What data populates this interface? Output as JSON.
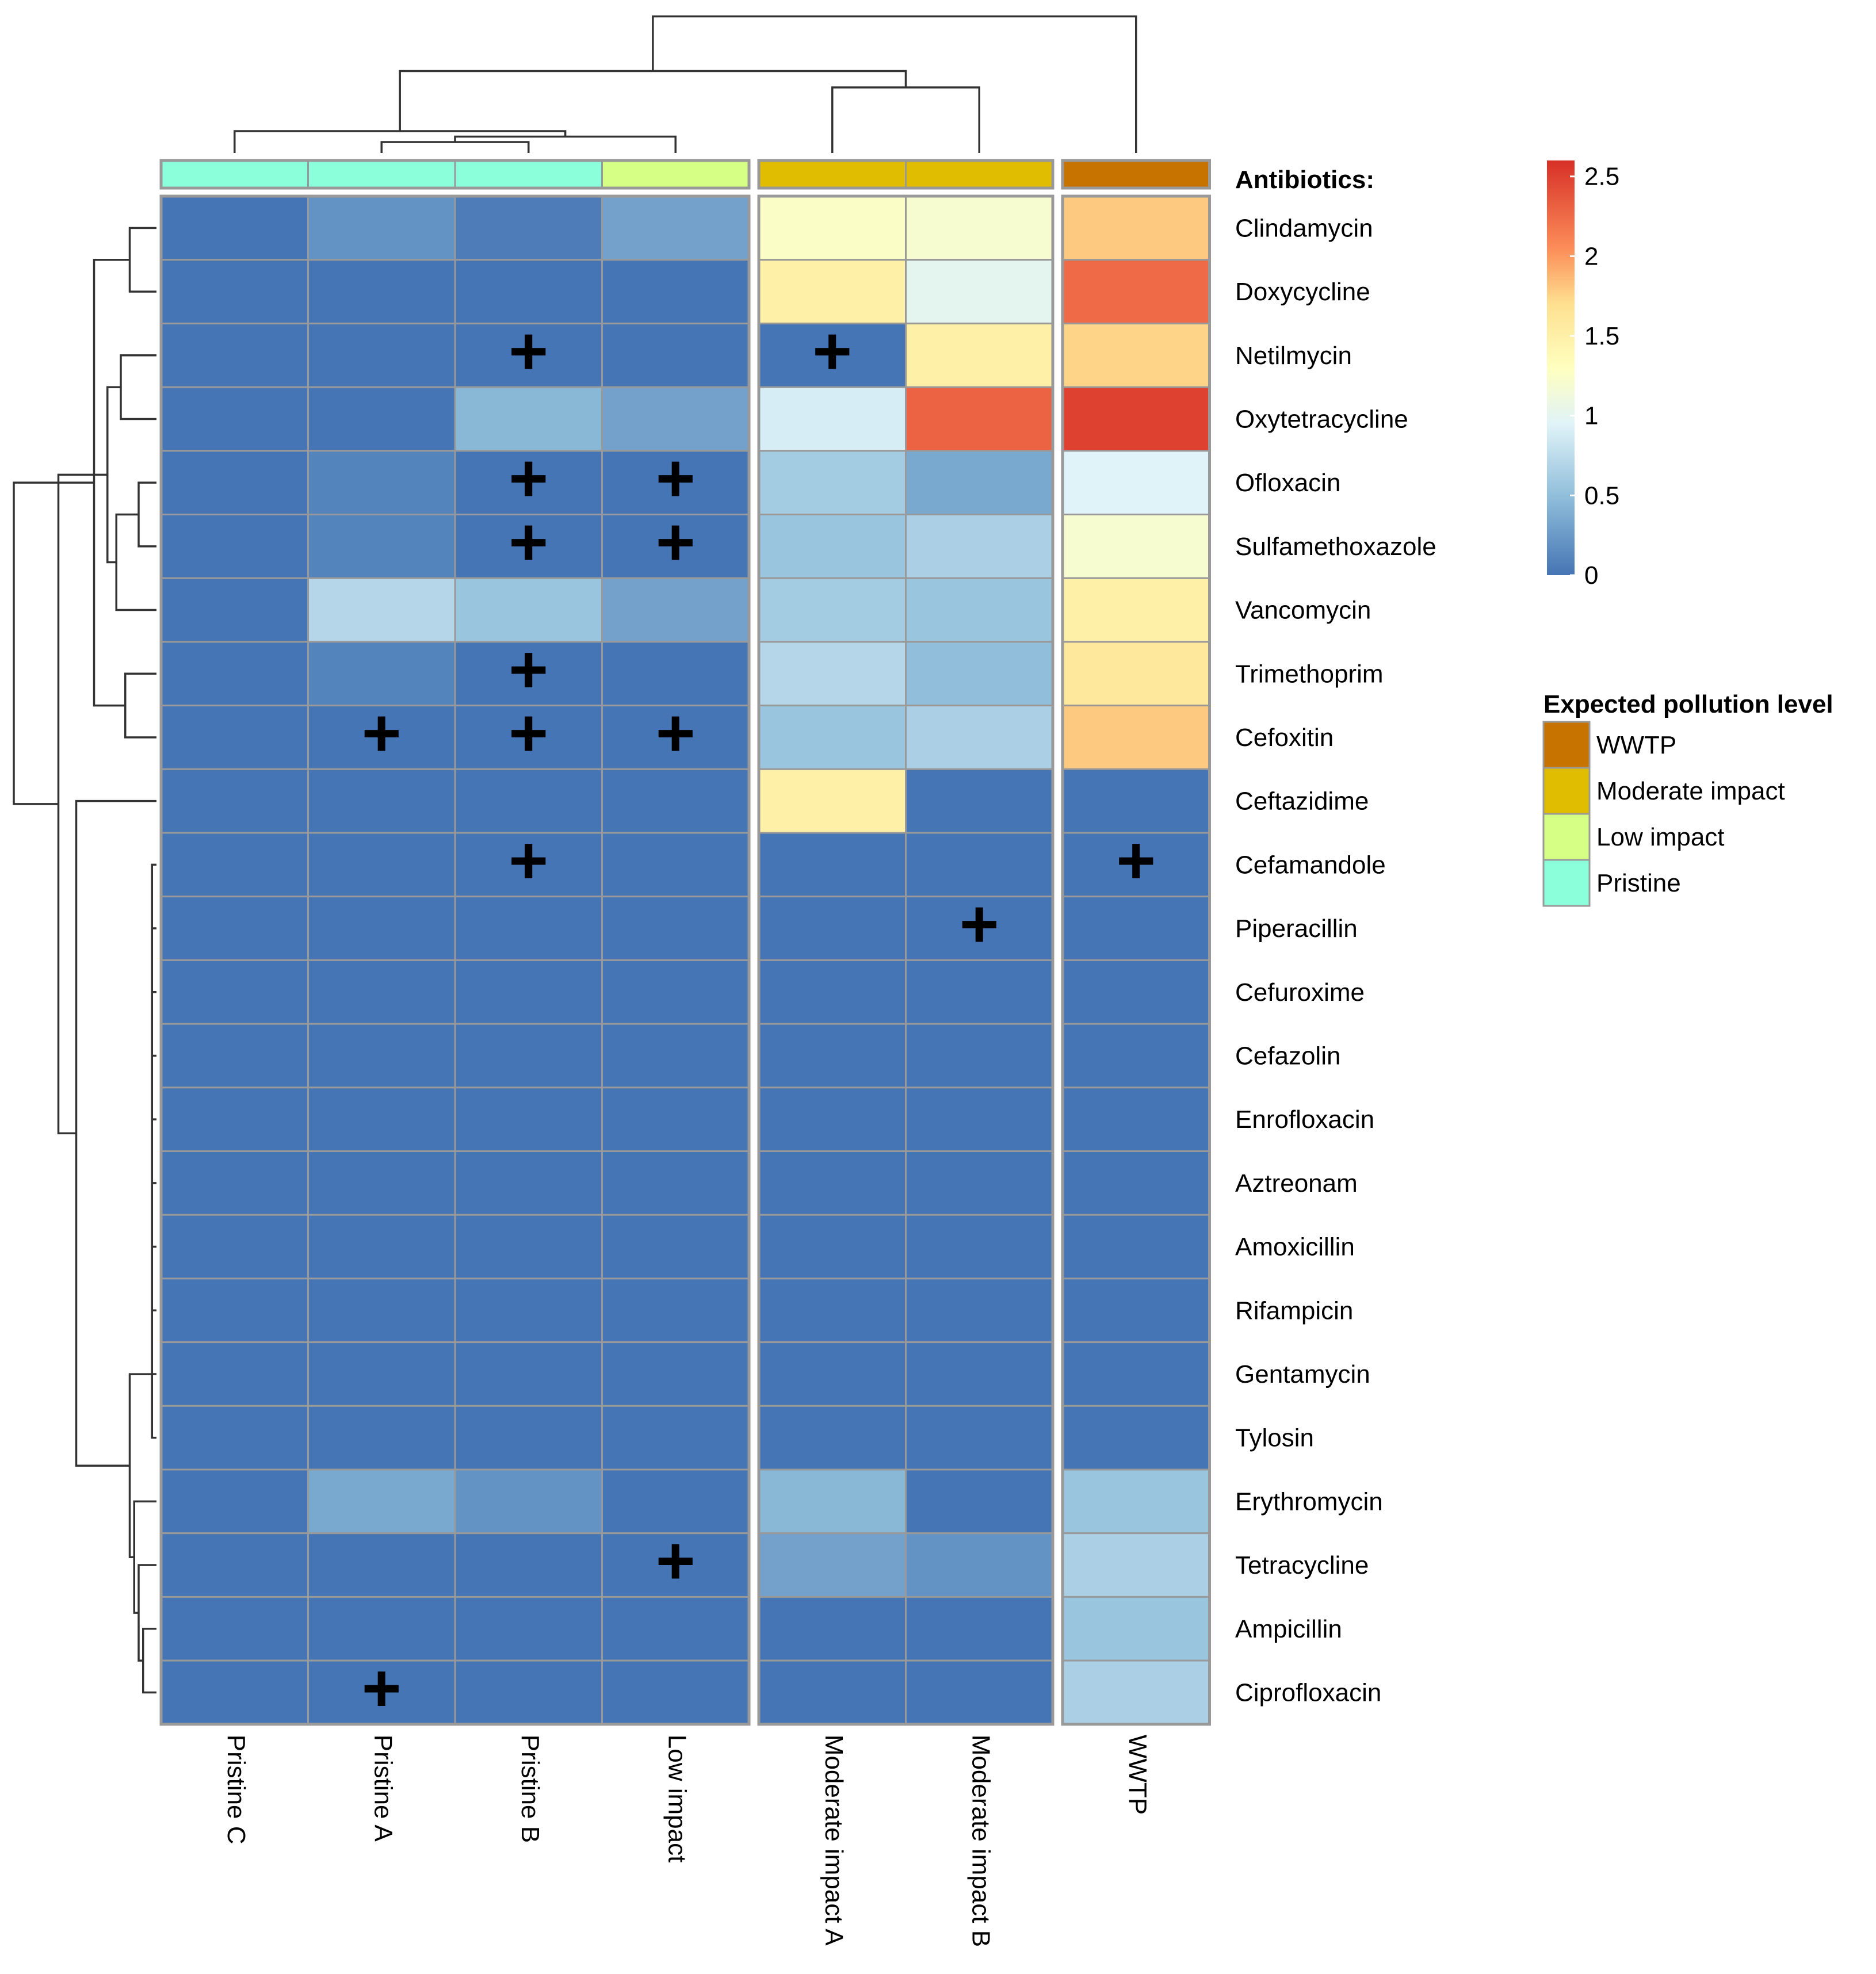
{
  "chart_data": {
    "type": "heatmap",
    "row_header": "Antibiotics:",
    "columns": [
      "Pristine C",
      "Pristine A",
      "Pristine B",
      "Low impact",
      "Moderate impact A",
      "Moderate impact B",
      "WWTP"
    ],
    "column_groups": [
      "Pristine",
      "Pristine",
      "Pristine",
      "Low impact",
      "Moderate impact",
      "Moderate impact",
      "WWTP"
    ],
    "rows": [
      "Clindamycin",
      "Doxycycline",
      "Netilmycin",
      "Oxytetracycline",
      "Ofloxacin",
      "Sulfamethoxazole",
      "Vancomycin",
      "Trimethoprim",
      "Cefoxitin",
      "Ceftazidime",
      "Cefamandole",
      "Piperacillin",
      "Cefuroxime",
      "Cefazolin",
      "Enrofloxacin",
      "Aztreonam",
      "Amoxicillin",
      "Rifampicin",
      "Gentamycin",
      "Tylosin",
      "Erythromycin",
      "Tetracycline",
      "Ampicillin",
      "Ciprofloxacin"
    ],
    "values": [
      [
        0,
        0.2,
        0.05,
        0.3,
        1.25,
        1.2,
        1.8
      ],
      [
        0,
        0,
        0,
        0,
        1.5,
        1.0,
        2.25
      ],
      [
        0,
        0,
        0,
        0,
        0,
        1.5,
        1.75
      ],
      [
        0,
        0,
        0.45,
        0.3,
        0.9,
        2.3,
        2.5
      ],
      [
        0,
        0.1,
        0,
        0,
        0.6,
        0.35,
        0.95
      ],
      [
        0,
        0.1,
        0,
        0,
        0.55,
        0.65,
        1.2
      ],
      [
        0,
        0.7,
        0.55,
        0.3,
        0.6,
        0.55,
        1.5
      ],
      [
        0,
        0.1,
        0,
        0,
        0.7,
        0.5,
        1.6
      ],
      [
        0,
        0,
        0,
        0,
        0.55,
        0.65,
        1.8
      ],
      [
        0,
        0,
        0,
        0,
        1.5,
        0,
        0
      ],
      [
        0,
        0,
        0,
        0,
        0,
        0,
        0
      ],
      [
        0,
        0,
        0,
        0,
        0,
        0,
        0
      ],
      [
        0,
        0,
        0,
        0,
        0,
        0,
        0
      ],
      [
        0,
        0,
        0,
        0,
        0,
        0,
        0
      ],
      [
        0,
        0,
        0,
        0,
        0,
        0,
        0
      ],
      [
        0,
        0,
        0,
        0,
        0,
        0,
        0
      ],
      [
        0,
        0,
        0,
        0,
        0,
        0,
        0
      ],
      [
        0,
        0,
        0,
        0,
        0,
        0,
        0
      ],
      [
        0,
        0,
        0,
        0,
        0,
        0,
        0
      ],
      [
        0,
        0,
        0,
        0,
        0,
        0,
        0
      ],
      [
        0,
        0.35,
        0.2,
        0,
        0.45,
        0,
        0.55
      ],
      [
        0,
        0,
        0,
        0,
        0.3,
        0.2,
        0.65
      ],
      [
        0,
        0,
        0,
        0,
        0,
        0,
        0.55
      ],
      [
        0,
        0,
        0,
        0,
        0,
        0,
        0.65
      ]
    ],
    "plus_marker": "+",
    "plus_cells": [
      [
        2,
        2
      ],
      [
        2,
        4
      ],
      [
        4,
        2
      ],
      [
        4,
        3
      ],
      [
        5,
        2
      ],
      [
        5,
        3
      ],
      [
        7,
        2
      ],
      [
        8,
        1
      ],
      [
        8,
        2
      ],
      [
        8,
        3
      ],
      [
        10,
        2
      ],
      [
        10,
        6
      ],
      [
        11,
        5
      ],
      [
        21,
        3
      ],
      [
        23,
        1
      ]
    ],
    "column_splits": [
      4,
      6
    ],
    "color_scale": {
      "min": 0,
      "max": 2.6,
      "ticks": [
        0,
        0.5,
        1,
        1.5,
        2,
        2.5
      ],
      "tick_labels": [
        "0",
        "0.5",
        "1",
        "1.5",
        "2",
        "2.5"
      ],
      "stops": [
        {
          "v": 0,
          "color": "#4575b4"
        },
        {
          "v": 0.5,
          "color": "#91bfdb"
        },
        {
          "v": 0.95,
          "color": "#e0f3f8"
        },
        {
          "v": 1.3,
          "color": "#ffffbf"
        },
        {
          "v": 1.7,
          "color": "#fee090"
        },
        {
          "v": 2.05,
          "color": "#fc8d59"
        },
        {
          "v": 2.6,
          "color": "#d73027"
        }
      ]
    },
    "legend": {
      "title": "Expected pollution level",
      "items": [
        {
          "label": "WWTP",
          "color": "#c67300"
        },
        {
          "label": "Moderate impact",
          "color": "#e0bd00"
        },
        {
          "label": "Low impact",
          "color": "#d5ff85"
        },
        {
          "label": "Pristine",
          "color": "#8affd9"
        }
      ]
    },
    "column_dendrogram": [
      [
        1,
        2,
        0.2
      ],
      [
        3,
        7,
        0.3
      ],
      [
        0,
        8,
        0.4
      ],
      [
        4,
        5,
        1.2
      ],
      [
        9,
        10,
        1.5
      ],
      [
        6,
        11,
        2.5
      ]
    ],
    "row_dendrogram": [
      [
        4,
        5,
        0.2
      ],
      [
        0,
        1,
        0.3
      ],
      [
        7,
        8,
        0.35
      ],
      [
        2,
        3,
        0.4
      ],
      [
        24,
        6,
        0.45
      ],
      [
        28,
        27,
        0.55
      ],
      [
        25,
        26,
        0.7
      ],
      [
        22,
        23,
        0.15
      ],
      [
        21,
        31,
        0.2
      ],
      [
        20,
        32,
        0.25
      ],
      [
        10,
        11,
        0.05
      ],
      [
        34,
        12,
        0.05
      ],
      [
        35,
        13,
        0.05
      ],
      [
        36,
        14,
        0.05
      ],
      [
        37,
        15,
        0.05
      ],
      [
        38,
        16,
        0.05
      ],
      [
        39,
        17,
        0.05
      ],
      [
        40,
        18,
        0.05
      ],
      [
        41,
        19,
        0.05
      ],
      [
        42,
        33,
        0.3
      ],
      [
        9,
        43,
        0.9
      ],
      [
        29,
        44,
        1.1
      ],
      [
        30,
        45,
        1.6
      ]
    ]
  }
}
